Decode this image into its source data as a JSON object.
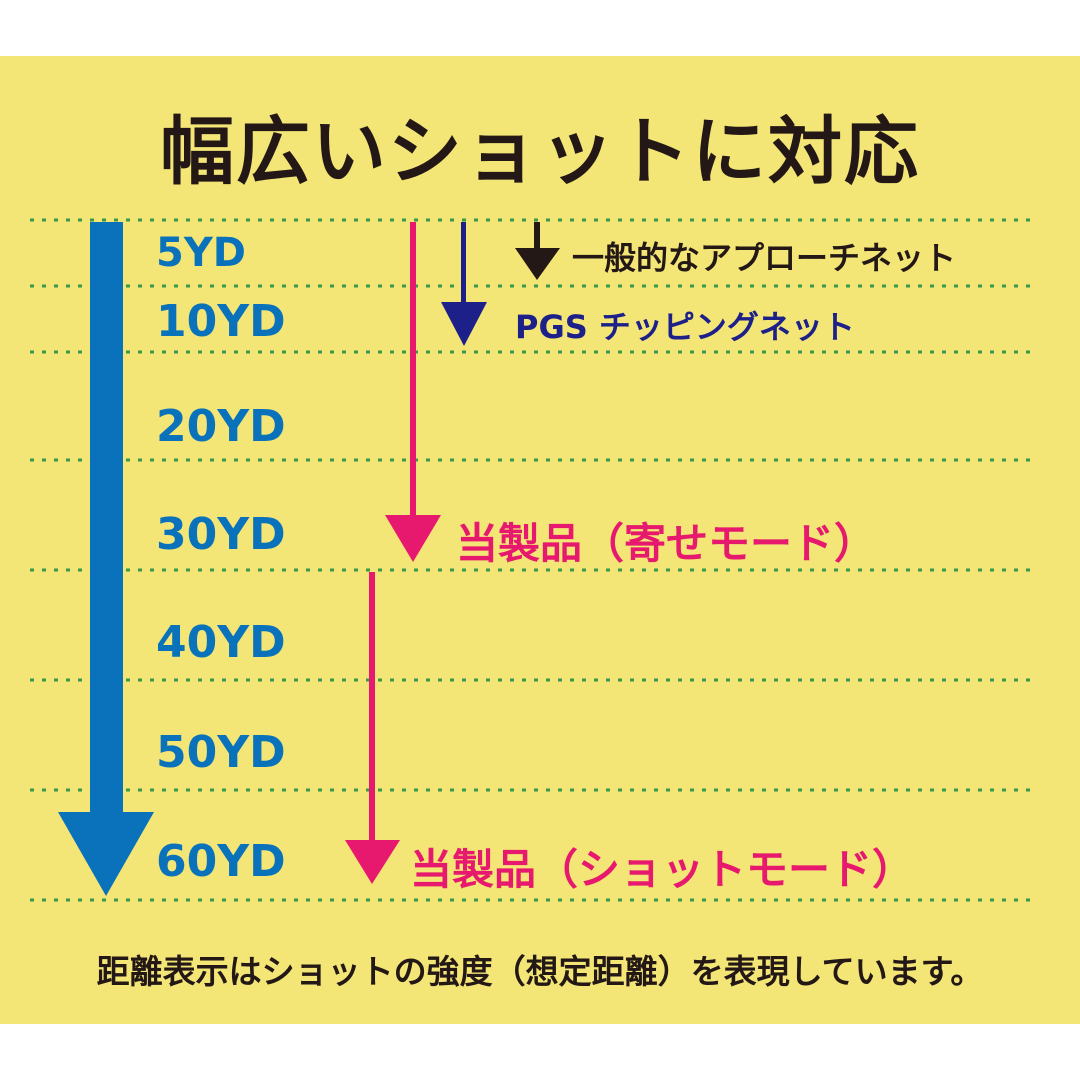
{
  "title": "幅広いショットに対応",
  "distances": [
    "5YD",
    "10YD",
    "20YD",
    "30YD",
    "40YD",
    "50YD",
    "60YD"
  ],
  "arrows": {
    "general_net": {
      "label": "一般的なアプローチネット",
      "color": "#231815"
    },
    "pgs_net": {
      "label": "PGS チッピングネット",
      "color": "#1d2088"
    },
    "product_approach": {
      "label": "当製品（寄せモード）",
      "color": "#e6196e"
    },
    "product_shot": {
      "label": "当製品（ショットモード）",
      "color": "#e6196e"
    },
    "full_range_color": "#0a72ba"
  },
  "footnote": "距離表示はショットの強度（想定距離）を表現しています。",
  "colors": {
    "background": "#f3e677",
    "gridline": "#3a9a4a"
  }
}
